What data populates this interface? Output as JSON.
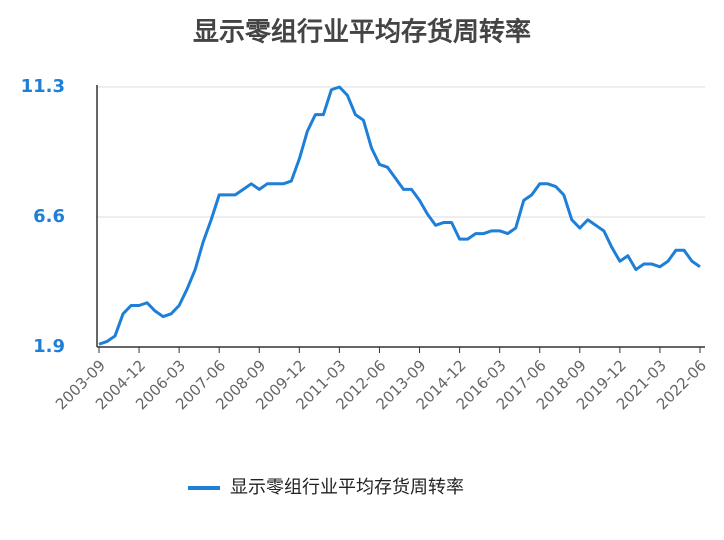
{
  "chart_data": {
    "type": "line",
    "title": "显示零组行业平均存货周转率",
    "categories": [
      "2003-09",
      null,
      null,
      null,
      null,
      "2004-12",
      null,
      null,
      null,
      null,
      "2006-03",
      null,
      null,
      null,
      null,
      "2007-06",
      null,
      null,
      null,
      null,
      "2008-09",
      null,
      null,
      null,
      null,
      "2009-12",
      null,
      null,
      null,
      null,
      "2011-03",
      null,
      null,
      null,
      null,
      "2012-06",
      null,
      null,
      null,
      null,
      "2013-09",
      null,
      null,
      null,
      null,
      "2014-12",
      null,
      null,
      null,
      null,
      "2016-03",
      null,
      null,
      null,
      null,
      "2017-06",
      null,
      null,
      null,
      null,
      "2018-09",
      null,
      null,
      null,
      null,
      "2019-12",
      null,
      null,
      null,
      null,
      "2021-03",
      null,
      null,
      null,
      null,
      "2022-06"
    ],
    "series": [
      {
        "name": "显示零组行业平均存货周转率",
        "color": "#1e7fd8",
        "values": [
          2.0,
          2.1,
          2.3,
          3.1,
          3.4,
          3.4,
          3.5,
          3.2,
          3.0,
          3.1,
          3.4,
          4.0,
          4.7,
          5.7,
          6.5,
          7.4,
          7.4,
          7.4,
          7.6,
          7.8,
          7.6,
          7.8,
          7.8,
          7.8,
          7.9,
          8.7,
          9.7,
          10.3,
          10.3,
          11.2,
          11.3,
          11.0,
          10.3,
          10.1,
          9.1,
          8.5,
          8.4,
          8.0,
          7.6,
          7.6,
          7.2,
          6.7,
          6.3,
          6.4,
          6.4,
          5.8,
          5.8,
          6.0,
          6.0,
          6.1,
          6.1,
          6.0,
          6.2,
          7.2,
          7.4,
          7.8,
          7.8,
          7.7,
          7.4,
          6.5,
          6.2,
          6.5,
          6.3,
          6.1,
          5.5,
          5.0,
          5.2,
          4.7,
          4.9,
          4.9,
          4.8,
          5.0,
          5.4,
          5.4,
          5.0,
          4.8
        ]
      }
    ],
    "ylim": [
      1.9,
      11.3
    ],
    "yticks": [
      1.9,
      6.6,
      11.3
    ],
    "grid": true,
    "legend": "bottom"
  }
}
